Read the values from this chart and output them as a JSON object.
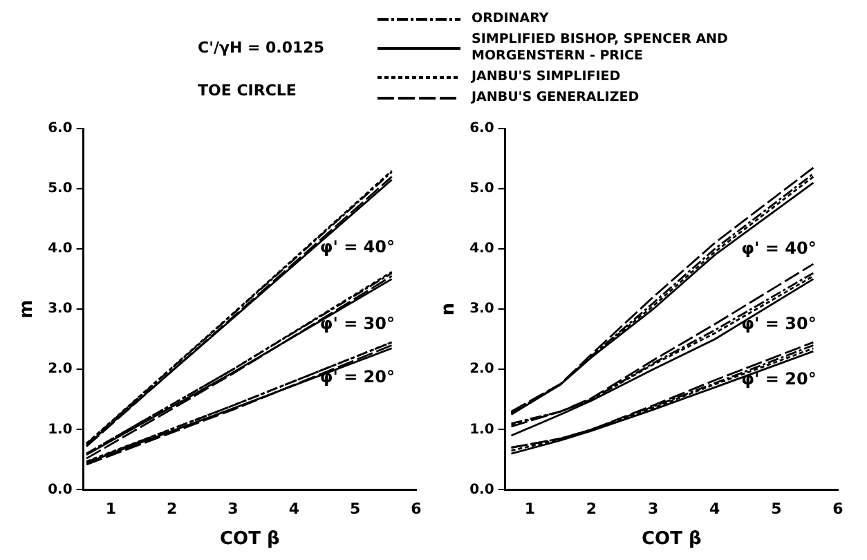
{
  "chart_data": [
    {
      "type": "line",
      "title": "C'/γH = 0.0125",
      "subtitle": "TOE CIRCLE",
      "xlabel": "COT β",
      "ylabel": "m",
      "legend": "top",
      "annotations": [
        "φ' = 40°",
        "φ' = 30°",
        "φ' = 20°"
      ],
      "xlim": [
        0.55,
        6
      ],
      "xticks": [
        1,
        2,
        3,
        4,
        5,
        6
      ],
      "ylim": [
        0,
        6
      ],
      "yticks": [
        {
          "value": 0,
          "label": "0.0"
        },
        {
          "value": 1,
          "label": "1.0"
        },
        {
          "value": 2,
          "label": "2.0"
        },
        {
          "value": 3,
          "label": "3.0"
        },
        {
          "value": 4,
          "label": "4.0"
        },
        {
          "value": 5,
          "label": "5.0"
        },
        {
          "value": 6,
          "label": "6.0"
        }
      ],
      "series": [
        {
          "name": "ORDINARY",
          "color": "#000000",
          "line_style": "dashdot",
          "x": [
            0.6,
            3,
            5.6
          ],
          "values": [
            0.76,
            2.92,
            5.28
          ]
        },
        {
          "name": "SIMPLIFIED BISHOP, SPENCER AND MORGENSTERN - PRICE",
          "color": "#000000",
          "line_style": "solid",
          "x": [
            0.6,
            3,
            5.6
          ],
          "values": [
            0.74,
            2.85,
            5.15
          ]
        },
        {
          "name": "JANBU'S SIMPLIFIED",
          "color": "#000000",
          "line_style": "dashed",
          "x": [
            0.6,
            3,
            5.6
          ],
          "values": [
            0.77,
            2.93,
            5.3
          ]
        },
        {
          "name": "JANBU'S GENERALIZED",
          "color": "#000000",
          "line_style": "longdash",
          "x": [
            0.6,
            3,
            5.6
          ],
          "values": [
            0.72,
            2.87,
            5.2
          ]
        },
        {
          "color": "#000000",
          "line_style": "dashdot",
          "x": [
            0.6,
            3,
            5.6
          ],
          "values": [
            0.6,
            2.0,
            3.6
          ]
        },
        {
          "color": "#000000",
          "line_style": "solid",
          "x": [
            0.6,
            3,
            5.6
          ],
          "values": [
            0.58,
            1.95,
            3.5
          ]
        },
        {
          "color": "#000000",
          "line_style": "dashed",
          "x": [
            0.6,
            3,
            5.6
          ],
          "values": [
            0.6,
            2.0,
            3.62
          ]
        },
        {
          "color": "#000000",
          "line_style": "longdash",
          "x": [
            0.6,
            3,
            5.6
          ],
          "values": [
            0.52,
            1.93,
            3.55
          ]
        },
        {
          "color": "#000000",
          "line_style": "dashdot",
          "x": [
            0.6,
            3,
            5.6
          ],
          "values": [
            0.46,
            1.4,
            2.45
          ]
        },
        {
          "color": "#000000",
          "line_style": "solid",
          "x": [
            0.6,
            3,
            5.6
          ],
          "values": [
            0.45,
            1.35,
            2.35
          ]
        },
        {
          "color": "#000000",
          "line_style": "dashed",
          "x": [
            0.6,
            3,
            5.6
          ],
          "values": [
            0.47,
            1.4,
            2.45
          ]
        },
        {
          "color": "#000000",
          "line_style": "longdash",
          "x": [
            0.6,
            3,
            5.6
          ],
          "values": [
            0.42,
            1.33,
            2.4
          ]
        }
      ]
    },
    {
      "type": "line",
      "xlabel": "COT β",
      "ylabel": "n",
      "annotations": [
        "φ' = 40°",
        "φ' = 30°",
        "φ' = 20°"
      ],
      "xlim": [
        0.6,
        6
      ],
      "xticks": [
        1,
        2,
        3,
        4,
        5,
        6
      ],
      "ylim": [
        0,
        6
      ],
      "yticks": [
        {
          "value": 0,
          "label": "0.0"
        },
        {
          "value": 1,
          "label": "1.0"
        },
        {
          "value": 2,
          "label": "2.0"
        },
        {
          "value": 3,
          "label": "3.0"
        },
        {
          "value": 4,
          "label": "4.0"
        },
        {
          "value": 5,
          "label": "5.0"
        },
        {
          "value": 6,
          "label": "6.0"
        }
      ],
      "series": [
        {
          "color": "#000000",
          "line_style": "dashdot",
          "x": [
            0.7,
            1.5,
            2,
            3,
            4,
            5.6
          ],
          "values": [
            1.28,
            1.75,
            2.22,
            3.1,
            4.0,
            5.25
          ]
        },
        {
          "color": "#000000",
          "line_style": "solid",
          "x": [
            0.7,
            1.5,
            2,
            3,
            4,
            5.6
          ],
          "values": [
            1.25,
            1.75,
            2.2,
            3.0,
            3.9,
            5.1
          ]
        },
        {
          "color": "#000000",
          "line_style": "dashed",
          "x": [
            0.7,
            1.5,
            2,
            3,
            4,
            5.6
          ],
          "values": [
            1.27,
            1.75,
            2.22,
            3.05,
            3.95,
            5.2
          ]
        },
        {
          "color": "#000000",
          "line_style": "longdash",
          "x": [
            0.7,
            1.5,
            2,
            3,
            4,
            5.6
          ],
          "values": [
            1.3,
            1.76,
            2.25,
            3.2,
            4.1,
            5.35
          ]
        },
        {
          "color": "#000000",
          "line_style": "dashdot",
          "x": [
            0.7,
            1.5,
            2,
            3,
            4,
            5.6
          ],
          "values": [
            1.1,
            1.3,
            1.5,
            2.1,
            2.65,
            3.6
          ]
        },
        {
          "color": "#000000",
          "line_style": "solid",
          "x": [
            0.7,
            1.5,
            2,
            3,
            4,
            5.6
          ],
          "values": [
            0.9,
            1.25,
            1.48,
            2.0,
            2.5,
            3.5
          ]
        },
        {
          "color": "#000000",
          "line_style": "dashed",
          "x": [
            0.7,
            1.5,
            2,
            3,
            4,
            5.6
          ],
          "values": [
            1.08,
            1.3,
            1.5,
            2.08,
            2.6,
            3.55
          ]
        },
        {
          "color": "#000000",
          "line_style": "longdash",
          "x": [
            0.7,
            1.5,
            2,
            3,
            4,
            5.6
          ],
          "values": [
            1.05,
            1.3,
            1.52,
            2.15,
            2.75,
            3.75
          ]
        },
        {
          "color": "#000000",
          "line_style": "dashdot",
          "x": [
            0.7,
            1.5,
            2,
            3,
            4,
            5.6
          ],
          "values": [
            0.7,
            0.85,
            1.0,
            1.38,
            1.77,
            2.4
          ]
        },
        {
          "color": "#000000",
          "line_style": "solid",
          "x": [
            0.7,
            1.5,
            2,
            3,
            4,
            5.6
          ],
          "values": [
            0.6,
            0.82,
            0.98,
            1.33,
            1.7,
            2.3
          ]
        },
        {
          "color": "#000000",
          "line_style": "dashed",
          "x": [
            0.7,
            1.5,
            2,
            3,
            4,
            5.6
          ],
          "values": [
            0.65,
            0.84,
            1.0,
            1.36,
            1.75,
            2.35
          ]
        },
        {
          "color": "#000000",
          "line_style": "longdash",
          "x": [
            0.7,
            1.5,
            2,
            3,
            4,
            5.6
          ],
          "values": [
            0.7,
            0.85,
            1.0,
            1.4,
            1.82,
            2.45
          ]
        }
      ]
    }
  ]
}
